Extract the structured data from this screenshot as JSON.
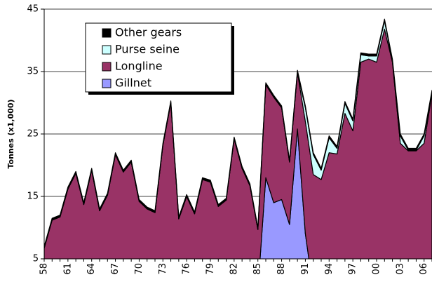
{
  "chart_data": {
    "type": "stacked_area",
    "y_label": "Tonnes (x1,000)",
    "categories": [
      "58",
      null,
      null,
      "61",
      null,
      null,
      "64",
      null,
      null,
      "67",
      null,
      null,
      "70",
      null,
      null,
      "73",
      null,
      null,
      "76",
      null,
      null,
      "79",
      null,
      null,
      "82",
      null,
      null,
      "85",
      null,
      null,
      "88",
      null,
      null,
      "91",
      null,
      null,
      "94",
      null,
      null,
      "97",
      null,
      null,
      "00",
      null,
      null,
      "03",
      null,
      null,
      "06",
      null
    ],
    "series": [
      {
        "name": "Gillnet",
        "color": "#9999ff",
        "values": [
          0,
          0,
          0,
          0,
          0,
          0,
          0,
          0,
          0,
          0,
          0,
          0,
          0,
          0,
          0,
          0,
          0,
          0,
          0,
          0,
          0,
          0,
          0,
          0,
          0,
          0,
          0,
          0,
          18,
          14,
          14.5,
          10.5,
          25.8,
          9,
          0,
          0,
          0,
          0,
          0,
          0,
          0,
          0,
          0,
          0,
          0,
          0,
          0,
          0,
          0,
          0
        ]
      },
      {
        "name": "Longline",
        "color": "#993366",
        "values": [
          6.7,
          11.2,
          11.7,
          16.2,
          18.7,
          13.7,
          19.2,
          12.7,
          15.2,
          21.7,
          18.9,
          20.5,
          14.2,
          13.0,
          12.4,
          23.2,
          30.0,
          11.4,
          15.0,
          12.2,
          17.7,
          17.3,
          13.4,
          14.4,
          24.2,
          19.5,
          16.7,
          9.7,
          14.9,
          16.9,
          14.7,
          10.0,
          9.1,
          18.0,
          18.5,
          17.7,
          22.0,
          21.8,
          28.3,
          25.5,
          36.5,
          37.0,
          36.5,
          41.8,
          36.5,
          23.5,
          22.3,
          22.3,
          23.5,
          31.5
        ]
      },
      {
        "name": "Purse seine",
        "color": "#ccffff",
        "values": [
          0,
          0,
          0,
          0,
          0,
          0,
          0,
          0,
          0,
          0,
          0,
          0,
          0,
          0,
          0,
          0,
          0,
          0,
          0,
          0,
          0,
          0,
          0,
          0,
          0,
          0,
          0,
          0,
          0,
          0,
          0,
          0,
          0,
          2.2,
          3.2,
          1.5,
          2.4,
          0.9,
          1.6,
          1.6,
          1.2,
          0.5,
          1.0,
          1.3,
          0.2,
          1.2,
          0.1,
          0.1,
          1.2,
          0.2
        ]
      },
      {
        "name": "Other gears",
        "color": "#000000",
        "values": [
          0.3,
          0.3,
          0.3,
          0.3,
          0.3,
          0.3,
          0.3,
          0.3,
          0.3,
          0.3,
          0.3,
          0.3,
          0.3,
          0.3,
          0.3,
          0.3,
          0.3,
          0.3,
          0.3,
          0.3,
          0.3,
          0.3,
          0.3,
          0.3,
          0.3,
          0.3,
          0.3,
          0.3,
          0.3,
          0.3,
          0.3,
          0.3,
          0.3,
          0.3,
          0.3,
          0.3,
          0.3,
          0.3,
          0.3,
          0.3,
          0.3,
          0.3,
          0.3,
          0.3,
          0.3,
          0.3,
          0.3,
          0.3,
          0.3,
          0.3
        ]
      }
    ],
    "ylim": [
      5,
      45
    ],
    "yticks": [
      5,
      15,
      25,
      35,
      45
    ],
    "grid": true
  }
}
